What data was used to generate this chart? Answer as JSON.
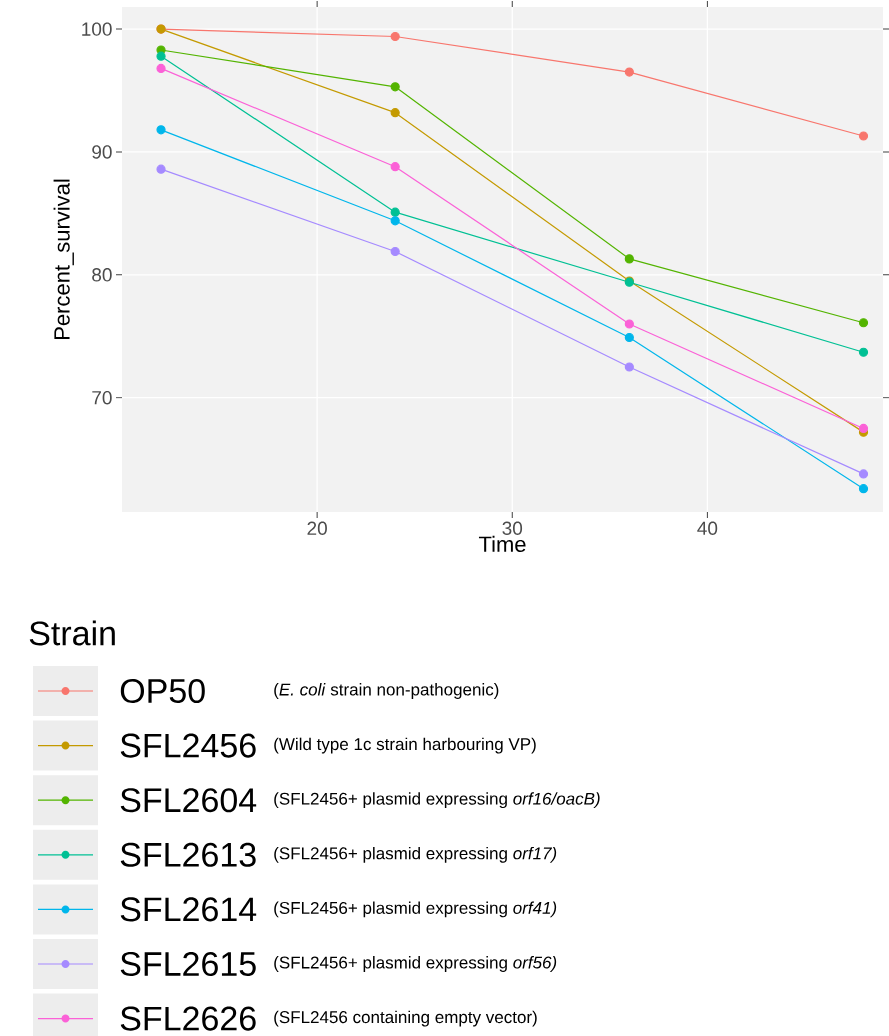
{
  "chart_data": {
    "type": "line",
    "xlabel": "Time",
    "ylabel": "Percent_survival",
    "legend_title": "Strain",
    "x": [
      12,
      24,
      36,
      48
    ],
    "xlim": [
      10,
      49
    ],
    "ylim": [
      60.7,
      101.8
    ],
    "xticks": [
      20,
      30,
      40
    ],
    "yticks": [
      70,
      80,
      90,
      100
    ],
    "grid": true,
    "legend": "bottom",
    "marker": "circle",
    "line_style": "solid",
    "series": [
      {
        "name": "OP50",
        "color": "#f8766d",
        "values": [
          100.0,
          99.4,
          96.5,
          91.3
        ]
      },
      {
        "name": "SFL2456",
        "color": "#c49a00",
        "values": [
          100.0,
          93.2,
          79.5,
          67.2
        ]
      },
      {
        "name": "SFL2604",
        "color": "#53b400",
        "values": [
          98.3,
          95.3,
          81.3,
          76.1
        ]
      },
      {
        "name": "SFL2613",
        "color": "#00c094",
        "values": [
          97.8,
          85.1,
          79.4,
          73.7
        ]
      },
      {
        "name": "SFL2614",
        "color": "#00b6eb",
        "values": [
          91.8,
          84.4,
          74.9,
          62.6
        ]
      },
      {
        "name": "SFL2615",
        "color": "#a58aff",
        "values": [
          88.6,
          81.9,
          72.5,
          63.8
        ]
      },
      {
        "name": "SFL2626",
        "color": "#fb61d7",
        "values": [
          96.8,
          88.8,
          76.0,
          67.5
        ]
      }
    ],
    "annotations": [
      "(*E. coli* strain non-pathogenic)",
      "(Wild type 1c strain harbouring VP)",
      "(SFL2456+ plasmid expressing *orf16/oacB)*",
      "(SFL2456+ plasmid expressing *orf17)*",
      "(SFL2456+ plasmid expressing *orf41)*",
      "(SFL2456+ plasmid expressing *orf56)*",
      "(SFL2456 containing empty vector)"
    ]
  }
}
